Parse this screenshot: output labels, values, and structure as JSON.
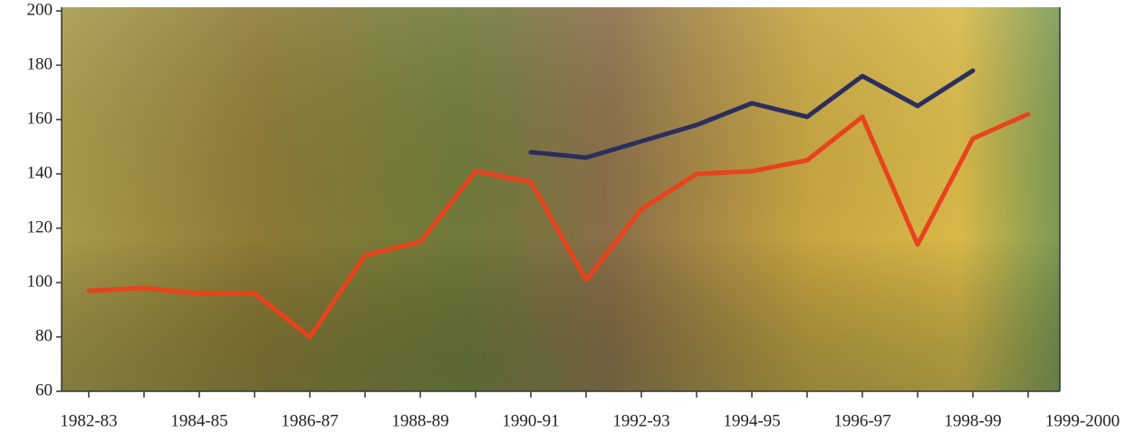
{
  "chart_data": {
    "type": "line",
    "categories": [
      "1982-83",
      null,
      "1984-85",
      null,
      "1986-87",
      null,
      "1988-89",
      null,
      "1990-91",
      null,
      "1992-93",
      null,
      "1994-95",
      null,
      "1996-97",
      null,
      "1998-99",
      "1999-2000"
    ],
    "series": [
      {
        "color": "#e8431c",
        "values": [
          97,
          98,
          96,
          96,
          80,
          110,
          115,
          141,
          137,
          101,
          127,
          140,
          141,
          145,
          161,
          114,
          153,
          162
        ]
      },
      {
        "color": "#2a2f5e",
        "values": [
          null,
          null,
          null,
          null,
          null,
          null,
          null,
          null,
          148,
          146,
          152,
          158,
          166,
          161,
          176,
          165,
          178,
          null
        ]
      }
    ],
    "ylim": [
      60,
      200
    ],
    "yticks": [
      60,
      80,
      100,
      120,
      140,
      160,
      180,
      200
    ]
  }
}
